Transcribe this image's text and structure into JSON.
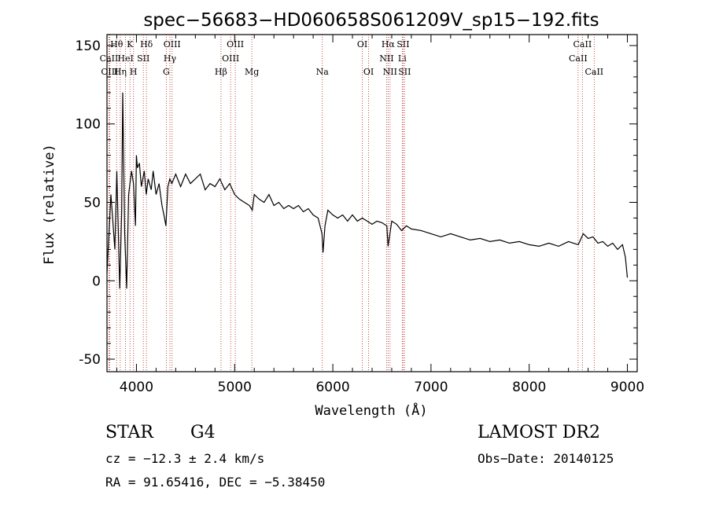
{
  "chart_data": {
    "type": "line",
    "title": "spec−56683−HD060658S061209V_sp15−192.fits",
    "xlabel": "Wavelength (Å)",
    "ylabel": "Flux (relative)",
    "xlim": [
      3700,
      9100
    ],
    "ylim": [
      -58,
      157
    ],
    "x_ticks": [
      4000,
      5000,
      6000,
      7000,
      8000,
      9000
    ],
    "y_ticks": [
      -50,
      0,
      50,
      100,
      150
    ],
    "grid": false,
    "line_color": "#000000",
    "marker_color": "#b22222",
    "series": [
      {
        "x": [
          3700,
          3740,
          3780,
          3800,
          3830,
          3850,
          3860,
          3880,
          3900,
          3920,
          3950,
          3970,
          3990,
          4000,
          4010,
          4030,
          4050,
          4080,
          4100,
          4120,
          4150,
          4170,
          4200,
          4230,
          4260,
          4280,
          4300,
          4320,
          4340,
          4360,
          4400,
          4450,
          4500,
          4550,
          4600,
          4650,
          4700,
          4750,
          4800,
          4850,
          4900,
          4950,
          5000,
          5050,
          5100,
          5150,
          5180,
          5200,
          5250,
          5300,
          5350,
          5400,
          5450,
          5500,
          5550,
          5600,
          5650,
          5700,
          5750,
          5800,
          5850,
          5890,
          5900,
          5920,
          5950,
          6000,
          6050,
          6100,
          6150,
          6200,
          6250,
          6300,
          6350,
          6400,
          6450,
          6500,
          6550,
          6563,
          6600,
          6650,
          6700,
          6750,
          6800,
          6900,
          7000,
          7100,
          7200,
          7300,
          7400,
          7500,
          7600,
          7700,
          7800,
          7900,
          8000,
          8100,
          8200,
          8300,
          8400,
          8500,
          8550,
          8600,
          8650,
          8700,
          8750,
          8800,
          8850,
          8900,
          8950,
          8980,
          9000
        ],
        "y": [
          5,
          55,
          20,
          70,
          -5,
          45,
          120,
          30,
          -5,
          55,
          70,
          62,
          35,
          80,
          72,
          75,
          60,
          70,
          55,
          65,
          58,
          70,
          55,
          62,
          48,
          42,
          35,
          60,
          65,
          62,
          68,
          60,
          68,
          62,
          65,
          68,
          58,
          62,
          60,
          65,
          58,
          62,
          55,
          52,
          50,
          48,
          45,
          55,
          52,
          50,
          55,
          48,
          50,
          46,
          48,
          46,
          48,
          44,
          46,
          42,
          40,
          30,
          18,
          35,
          45,
          42,
          40,
          42,
          38,
          42,
          38,
          40,
          38,
          36,
          38,
          37,
          35,
          22,
          38,
          36,
          32,
          35,
          33,
          32,
          30,
          28,
          30,
          28,
          26,
          27,
          25,
          26,
          24,
          25,
          23,
          22,
          24,
          22,
          25,
          23,
          30,
          27,
          28,
          24,
          25,
          22,
          24,
          20,
          23,
          15,
          2
        ]
      }
    ],
    "spectral_lines": [
      {
        "label": "Hθ",
        "x": 3798,
        "row": 0
      },
      {
        "label": "K",
        "x": 3934,
        "row": 0
      },
      {
        "label": "Hδ",
        "x": 4102,
        "row": 0
      },
      {
        "label": "OIII",
        "x": 4363,
        "row": 0
      },
      {
        "label": "OIII",
        "x": 5007,
        "row": 0
      },
      {
        "label": "OI",
        "x": 6300,
        "row": 0
      },
      {
        "label": "Hα",
        "x": 6563,
        "row": 0
      },
      {
        "label": "SII",
        "x": 6716,
        "row": 0
      },
      {
        "label": "CaII",
        "x": 8542,
        "row": 0
      },
      {
        "label": "CaII",
        "x": 3720,
        "row": 1
      },
      {
        "label": "HeI",
        "x": 3889,
        "row": 1
      },
      {
        "label": "SII",
        "x": 4070,
        "row": 1
      },
      {
        "label": "Hγ",
        "x": 4341,
        "row": 1
      },
      {
        "label": "OIII",
        "x": 4959,
        "row": 1
      },
      {
        "label": "NII",
        "x": 6548,
        "row": 1
      },
      {
        "label": "Li",
        "x": 6707,
        "row": 1
      },
      {
        "label": "CaII",
        "x": 8498,
        "row": 1
      },
      {
        "label": "OIII",
        "x": 3727,
        "row": 2
      },
      {
        "label": "Hη",
        "x": 3835,
        "row": 2
      },
      {
        "label": "H",
        "x": 3970,
        "row": 2
      },
      {
        "label": "G",
        "x": 4304,
        "row": 2
      },
      {
        "label": "Hβ",
        "x": 4861,
        "row": 2
      },
      {
        "label": "Mg",
        "x": 5175,
        "row": 2
      },
      {
        "label": "Na",
        "x": 5893,
        "row": 2
      },
      {
        "label": "OI",
        "x": 6364,
        "row": 2
      },
      {
        "label": "NII",
        "x": 6583,
        "row": 2
      },
      {
        "label": "SII",
        "x": 6731,
        "row": 2
      },
      {
        "label": "CaII",
        "x": 8662,
        "row": 2
      }
    ]
  },
  "info": {
    "object_type": "STAR",
    "subclass": "G4",
    "survey": "LAMOST DR2",
    "cz": "cz = −12.3 ± 2.4 km/s",
    "obs_date": "Obs−Date: 20140125",
    "coords": "RA =  91.65416, DEC =  −5.38450"
  }
}
